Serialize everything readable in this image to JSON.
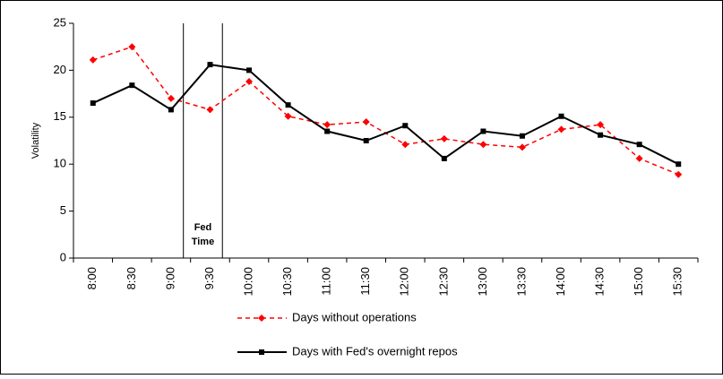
{
  "chart_data": {
    "type": "line",
    "y_label": "Volatility",
    "categories": [
      "8:00",
      "8:30",
      "9:00",
      "9:30",
      "10:00",
      "10:30",
      "11:00",
      "11:30",
      "12:00",
      "12:30",
      "13:00",
      "13:30",
      "14:00",
      "14:30",
      "15:00",
      "15:30"
    ],
    "series": [
      {
        "name": "Days without operations",
        "color": "#ff0000",
        "marker": "diamond",
        "dashed": true,
        "values": [
          21.1,
          22.5,
          17.0,
          15.8,
          18.8,
          15.1,
          14.2,
          14.5,
          12.1,
          12.7,
          12.1,
          11.8,
          13.7,
          14.2,
          10.6,
          8.9
        ]
      },
      {
        "name": "Days with Fed's overnight repos",
        "color": "#000000",
        "marker": "square",
        "dashed": false,
        "values": [
          16.5,
          18.4,
          15.8,
          20.6,
          20.0,
          16.3,
          13.5,
          12.5,
          14.1,
          10.6,
          13.5,
          13.0,
          15.1,
          13.1,
          12.1,
          10.0
        ]
      }
    ],
    "annotation": [
      "Fed",
      "Time"
    ],
    "ylim": [
      0,
      25
    ],
    "yticks": [
      0,
      5,
      10,
      15,
      20,
      25
    ],
    "grid": false
  }
}
